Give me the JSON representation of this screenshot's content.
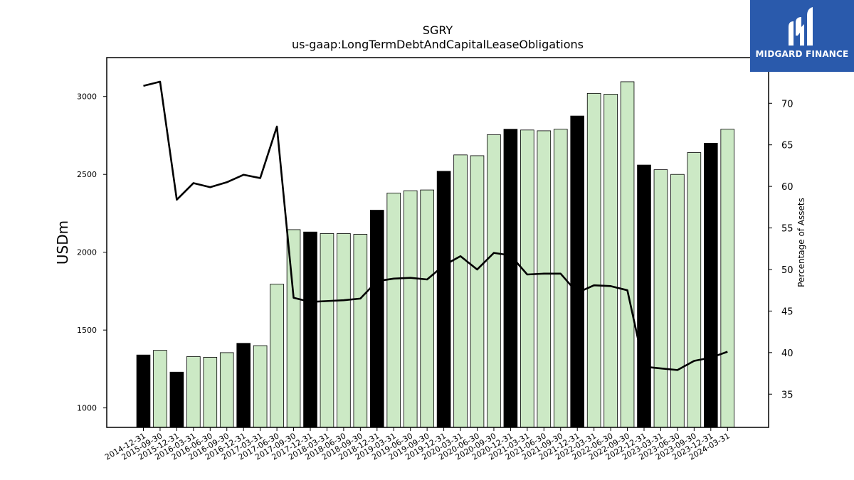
{
  "chart_data": {
    "type": "bar",
    "title": "SGRY",
    "subtitle": "us-gaap:LongTermDebtAndCapitalLeaseObligations",
    "ylabel": "USDm",
    "y2label": "Percentage of Assets",
    "ylim": [
      875,
      3250
    ],
    "y2lim": [
      31,
      75.5
    ],
    "yticks": [
      1000,
      1500,
      2000,
      2500,
      3000
    ],
    "y2ticks": [
      35,
      40,
      45,
      50,
      55,
      60,
      65,
      70
    ],
    "categories": [
      "2014-12-31",
      "2015-09-30",
      "2015-12-31",
      "2016-03-31",
      "2016-06-30",
      "2016-09-30",
      "2016-12-31",
      "2017-03-31",
      "2017-06-30",
      "2017-09-30",
      "2017-12-31",
      "2018-03-31",
      "2018-06-30",
      "2018-09-30",
      "2018-12-31",
      "2019-03-31",
      "2019-06-30",
      "2019-09-30",
      "2019-12-31",
      "2020-03-31",
      "2020-06-30",
      "2020-09-30",
      "2020-12-31",
      "2021-03-31",
      "2021-06-30",
      "2021-09-30",
      "2021-12-31",
      "2022-03-31",
      "2022-06-30",
      "2022-09-30",
      "2022-12-31",
      "2023-03-31",
      "2023-06-30",
      "2023-09-30",
      "2023-12-31",
      "2024-03-31"
    ],
    "series": [
      {
        "kind": "bar",
        "values": [
          1340,
          1370,
          1230,
          1330,
          1325,
          1355,
          1415,
          1400,
          1795,
          2145,
          2130,
          2120,
          2120,
          2115,
          2270,
          2380,
          2395,
          2400,
          2520,
          2625,
          2620,
          2755,
          2790,
          2785,
          2780,
          2790,
          2875,
          3020,
          3015,
          3095,
          2560,
          2530,
          2500,
          2640,
          2700,
          2790
        ],
        "year_end": [
          true,
          false,
          true,
          false,
          false,
          false,
          true,
          false,
          false,
          false,
          true,
          false,
          false,
          false,
          true,
          false,
          false,
          false,
          true,
          false,
          false,
          false,
          true,
          false,
          false,
          false,
          true,
          false,
          false,
          false,
          true,
          false,
          false,
          false,
          true,
          false
        ]
      },
      {
        "kind": "line",
        "axis": "right",
        "values": [
          72.1,
          72.6,
          58.4,
          60.4,
          59.9,
          60.5,
          61.4,
          61.0,
          67.2,
          46.6,
          46.1,
          46.2,
          46.3,
          46.5,
          48.6,
          48.9,
          49.0,
          48.8,
          50.5,
          51.6,
          50.0,
          52.0,
          51.7,
          49.4,
          49.5,
          49.5,
          47.2,
          48.1,
          48.0,
          47.5,
          38.3,
          38.1,
          37.9,
          39.0,
          39.4,
          40.1
        ]
      }
    ],
    "colors": {
      "bar_year_end": "#000000",
      "bar_other": "#cce9c5",
      "bar_edge": "#000000",
      "line": "#000000"
    },
    "grid": false,
    "legend": "none"
  },
  "logo": {
    "text": "MIDGARD FINANCE",
    "background": "#2a5aac"
  }
}
